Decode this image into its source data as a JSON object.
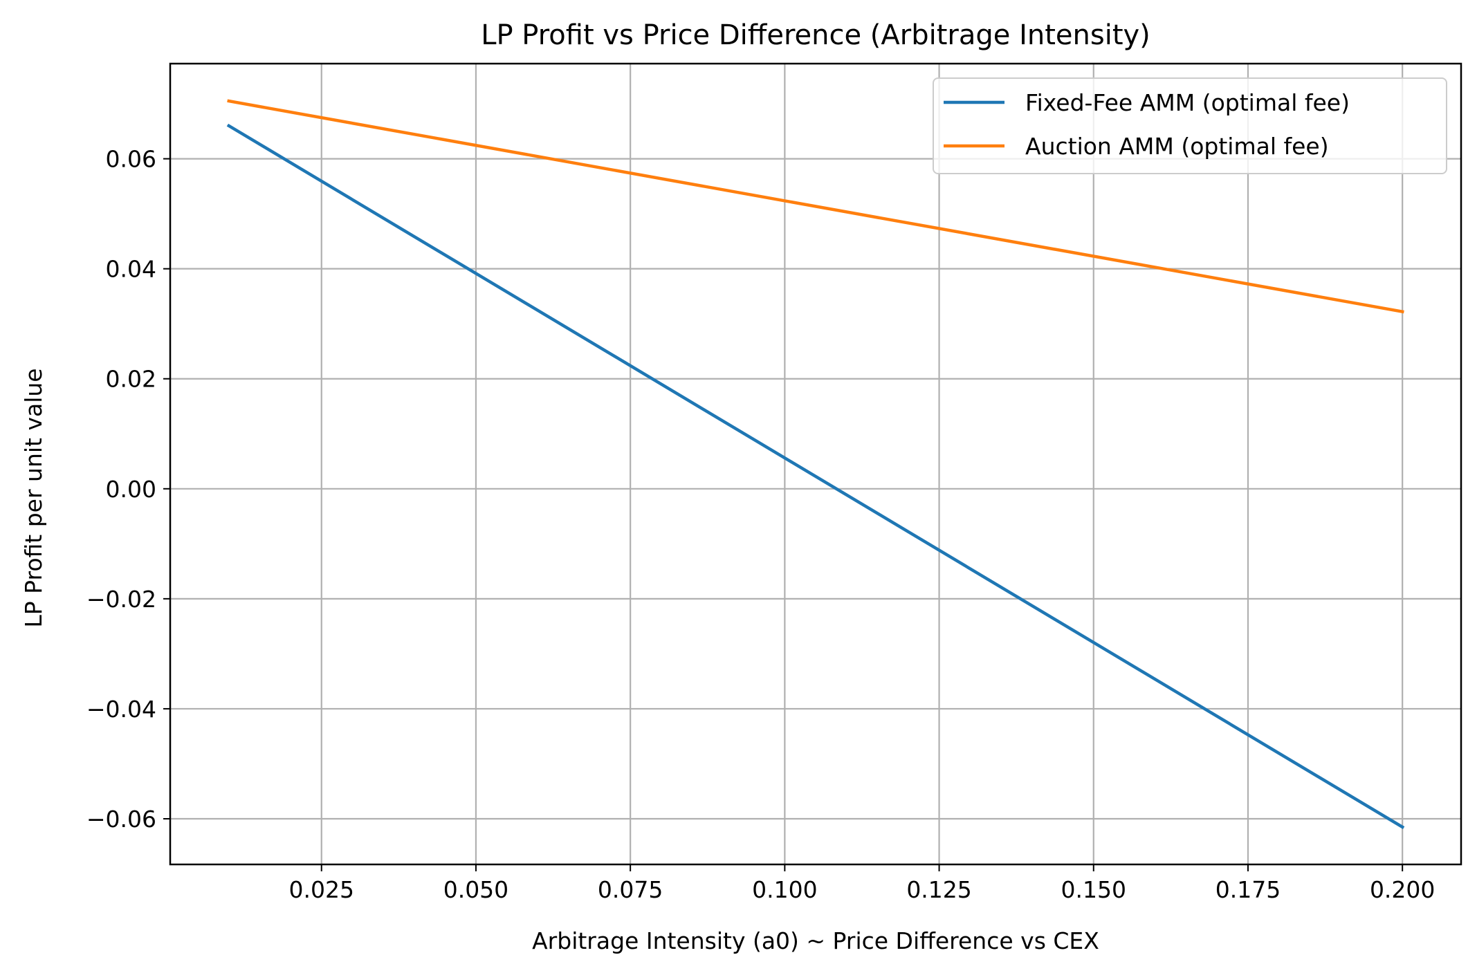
{
  "chart_data": {
    "type": "line",
    "title": "LP Profit vs Price Difference (Arbitrage Intensity)",
    "xlabel": "Arbitrage Intensity (a0) ~ Price Difference vs CEX",
    "ylabel": "LP Profit per unit value",
    "xlim": [
      0.0005,
      0.2095
    ],
    "ylim": [
      -0.0683,
      0.0773
    ],
    "xticks": [
      0.025,
      0.05,
      0.075,
      0.1,
      0.125,
      0.15,
      0.175,
      0.2
    ],
    "xtick_labels": [
      "0.025",
      "0.050",
      "0.075",
      "0.100",
      "0.125",
      "0.150",
      "0.175",
      "0.200"
    ],
    "yticks": [
      -0.06,
      -0.04,
      -0.02,
      0.0,
      0.02,
      0.04,
      0.06
    ],
    "ytick_labels": [
      "−0.06",
      "−0.04",
      "−0.02",
      "0.00",
      "0.02",
      "0.04",
      "0.06"
    ],
    "grid": true,
    "legend_position": "top-right",
    "series": [
      {
        "name": "Fixed-Fee AMM (optimal fee)",
        "color": "#1f77b4",
        "x": [
          0.01,
          0.2
        ],
        "y": [
          0.066,
          -0.0615
        ]
      },
      {
        "name": "Auction AMM (optimal fee)",
        "color": "#ff7f0e",
        "x": [
          0.01,
          0.2
        ],
        "y": [
          0.0705,
          0.0322
        ]
      }
    ]
  }
}
